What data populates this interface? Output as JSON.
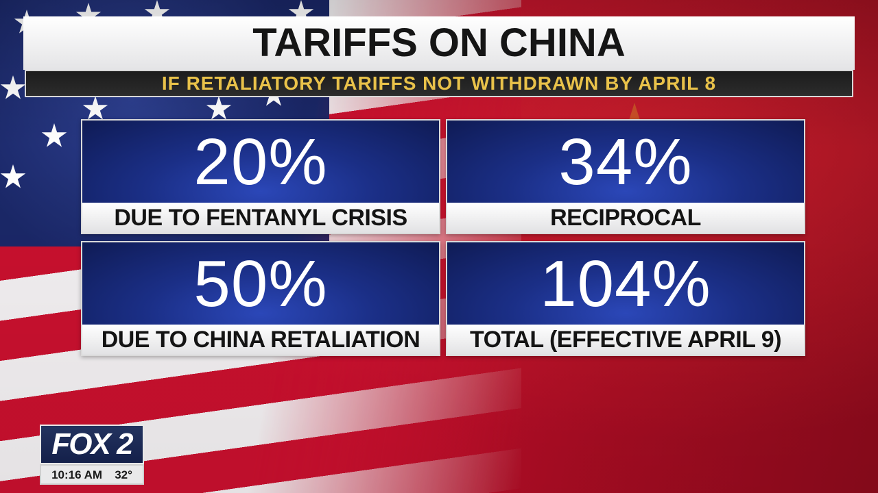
{
  "header": {
    "title": "TARIFFS ON CHINA",
    "subtitle": "IF RETALIATORY TARIFFS NOT WITHDRAWN BY APRIL 8"
  },
  "panels": [
    {
      "value": "20%",
      "label": "DUE TO FENTANYL CRISIS"
    },
    {
      "value": "34%",
      "label": "RECIPROCAL"
    },
    {
      "value": "50%",
      "label": "DUE TO CHINA RETALIATION"
    },
    {
      "value": "104%",
      "label": "TOTAL (EFFECTIVE APRIL 9)"
    }
  ],
  "station_bug": {
    "logo": "FOX 2",
    "time": "10:16 AM",
    "temperature": "32°"
  },
  "colors": {
    "subtitle_text": "#e9c24a",
    "panel_blue": "#1b2f87",
    "flag_red": "#c8102e",
    "flag_blue": "#1a2767"
  },
  "background": {
    "left_flag": "united-states-flag",
    "right_flag": "china-flag"
  }
}
